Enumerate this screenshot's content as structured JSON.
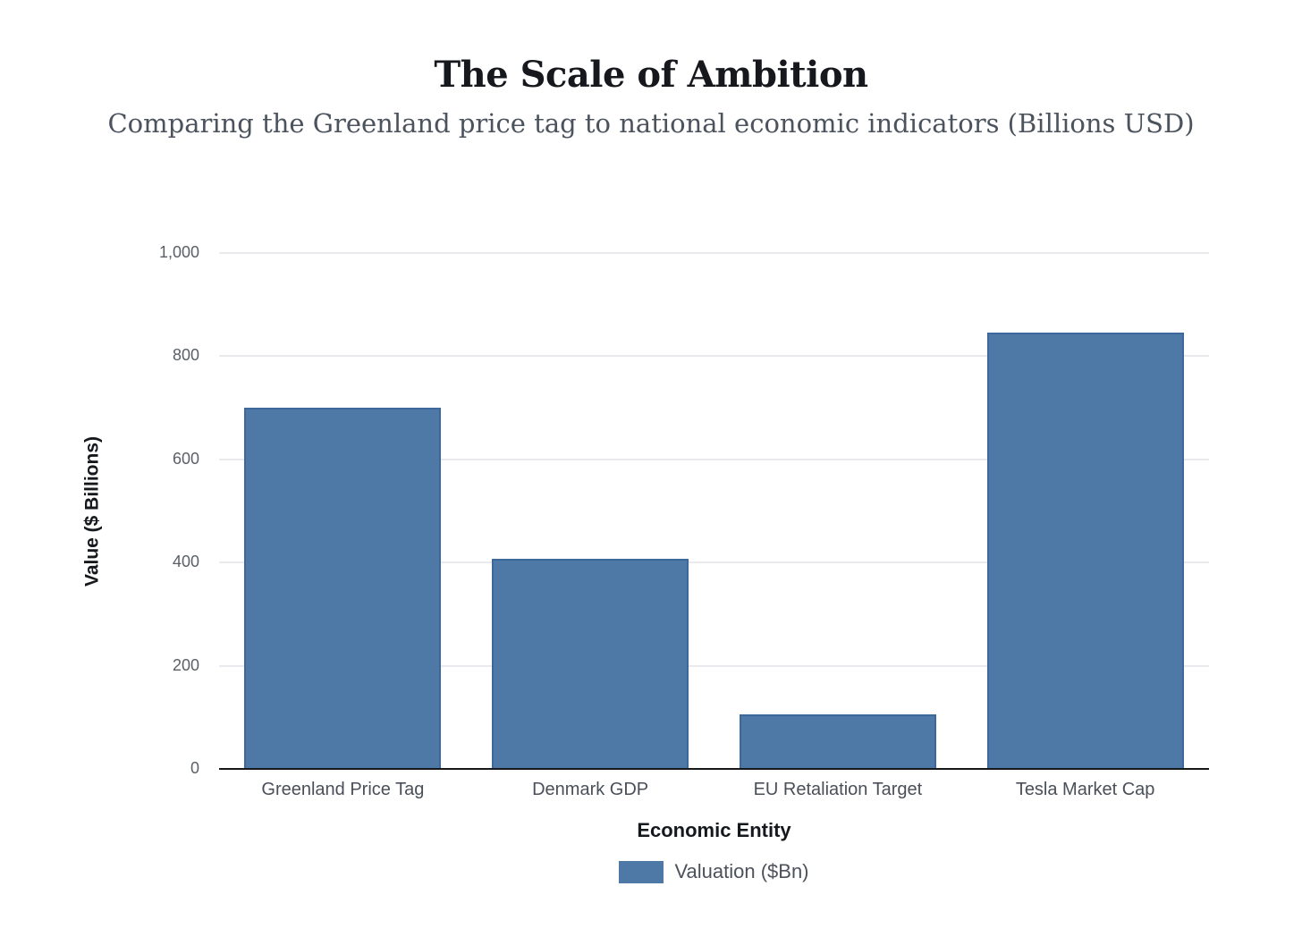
{
  "chart_data": {
    "type": "bar",
    "title": "The Scale of Ambition",
    "subtitle": "Comparing the Greenland price tag to national economic indicators (Billions USD)",
    "xlabel": "Economic Entity",
    "ylabel": "Value ($ Billions)",
    "categories": [
      "Greenland Price Tag",
      "Denmark GDP",
      "EU Retaliation Target",
      "Tesla Market Cap"
    ],
    "series": [
      {
        "name": "Valuation ($Bn)",
        "values": [
          700,
          407,
          105,
          845
        ]
      }
    ],
    "ylim": [
      0,
      1000
    ],
    "yticks": [
      {
        "value": 0,
        "label": "0"
      },
      {
        "value": 200,
        "label": "200"
      },
      {
        "value": 400,
        "label": "400"
      },
      {
        "value": 600,
        "label": "600"
      },
      {
        "value": 800,
        "label": "800"
      },
      {
        "value": 1000,
        "label": "1,000"
      }
    ],
    "grid": true,
    "legend": {
      "position": "bottom",
      "entries": [
        {
          "label": "Valuation ($Bn)",
          "color": "#4e79a7"
        }
      ]
    }
  },
  "colors": {
    "bar_fill": "#4e79a7",
    "bar_border": "#3d689c",
    "gridline": "#e9e9ee",
    "axis_line": "#17181a",
    "title_text": "#16181d",
    "subtitle_text": "#4b535e",
    "tick_text": "#5a5f66"
  }
}
